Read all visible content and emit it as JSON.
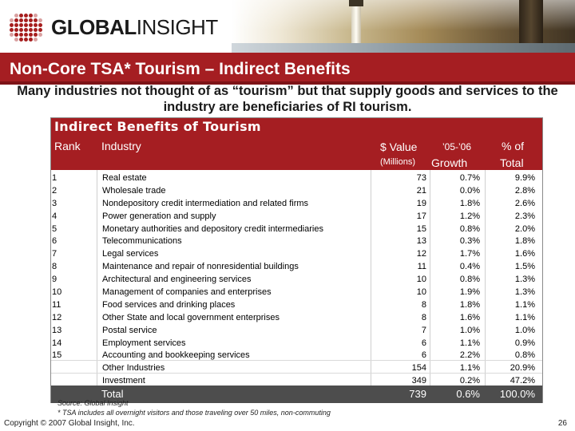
{
  "header": {
    "logo_bold": "GLOBAL",
    "logo_light": "INSIGHT",
    "title": "Non-Core TSA* Tourism – Indirect Benefits"
  },
  "subtitle": "Many industries not thought of as “tourism” but that supply goods and services to the industry are beneficiaries of RI tourism.",
  "table": {
    "title": "Indirect Benefits of Tourism",
    "headers": {
      "rank": "Rank",
      "industry": "Industry",
      "value": "$ Value",
      "value_sub": "(Millions)",
      "growth_line1": "’05-’06",
      "growth_line2": "Growth",
      "pct_line1": "% of",
      "pct_line2": "Total"
    },
    "rows": [
      {
        "rank": "1",
        "industry": "Real estate",
        "value": "73",
        "growth": "0.7%",
        "pct": "9.9%"
      },
      {
        "rank": "2",
        "industry": "Wholesale trade",
        "value": "21",
        "growth": "0.0%",
        "pct": "2.8%"
      },
      {
        "rank": "3",
        "industry": "Nondepository credit intermediation and related firms",
        "value": "19",
        "growth": "1.8%",
        "pct": "2.6%"
      },
      {
        "rank": "4",
        "industry": "Power generation and supply",
        "value": "17",
        "growth": "1.2%",
        "pct": "2.3%"
      },
      {
        "rank": "5",
        "industry": "Monetary authorities and depository credit intermediaries",
        "value": "15",
        "growth": "0.8%",
        "pct": "2.0%"
      },
      {
        "rank": "6",
        "industry": "Telecommunications",
        "value": "13",
        "growth": "0.3%",
        "pct": "1.8%"
      },
      {
        "rank": "7",
        "industry": "Legal services",
        "value": "12",
        "growth": "1.7%",
        "pct": "1.6%"
      },
      {
        "rank": "8",
        "industry": "Maintenance and repair of nonresidential buildings",
        "value": "11",
        "growth": "0.4%",
        "pct": "1.5%"
      },
      {
        "rank": "9",
        "industry": "Architectural and engineering services",
        "value": "10",
        "growth": "0.8%",
        "pct": "1.3%"
      },
      {
        "rank": "10",
        "industry": "Management of companies and enterprises",
        "value": "10",
        "growth": "1.9%",
        "pct": "1.3%"
      },
      {
        "rank": "11",
        "industry": "Food services and drinking places",
        "value": "8",
        "growth": "1.8%",
        "pct": "1.1%"
      },
      {
        "rank": "12",
        "industry": "Other State and local government enterprises",
        "value": "8",
        "growth": "1.6%",
        "pct": "1.1%"
      },
      {
        "rank": "13",
        "industry": "Postal service",
        "value": "7",
        "growth": "1.0%",
        "pct": "1.0%"
      },
      {
        "rank": "14",
        "industry": "Employment services",
        "value": "6",
        "growth": "1.1%",
        "pct": "0.9%"
      },
      {
        "rank": "15",
        "industry": "Accounting and bookkeeping services",
        "value": "6",
        "growth": "2.2%",
        "pct": "0.8%"
      },
      {
        "rank": "",
        "industry": "Other Industries",
        "value": "154",
        "growth": "1.1%",
        "pct": "20.9%"
      },
      {
        "rank": "",
        "industry": "Investment",
        "value": "349",
        "growth": "0.2%",
        "pct": "47.2%"
      }
    ],
    "total": {
      "label": "Total",
      "value": "739",
      "growth": "0.6%",
      "pct": "100.0%"
    }
  },
  "footer": {
    "source": "Source: Global Insight",
    "footnote": "* TSA includes all overnight visitors and those traveling over 50 miles, non-commuting",
    "copyright": "Copyright © 2007 Global Insight, Inc.",
    "page_number": "26"
  },
  "colors": {
    "accent_red": "#a51e22",
    "total_bar": "#4d4d4d"
  }
}
